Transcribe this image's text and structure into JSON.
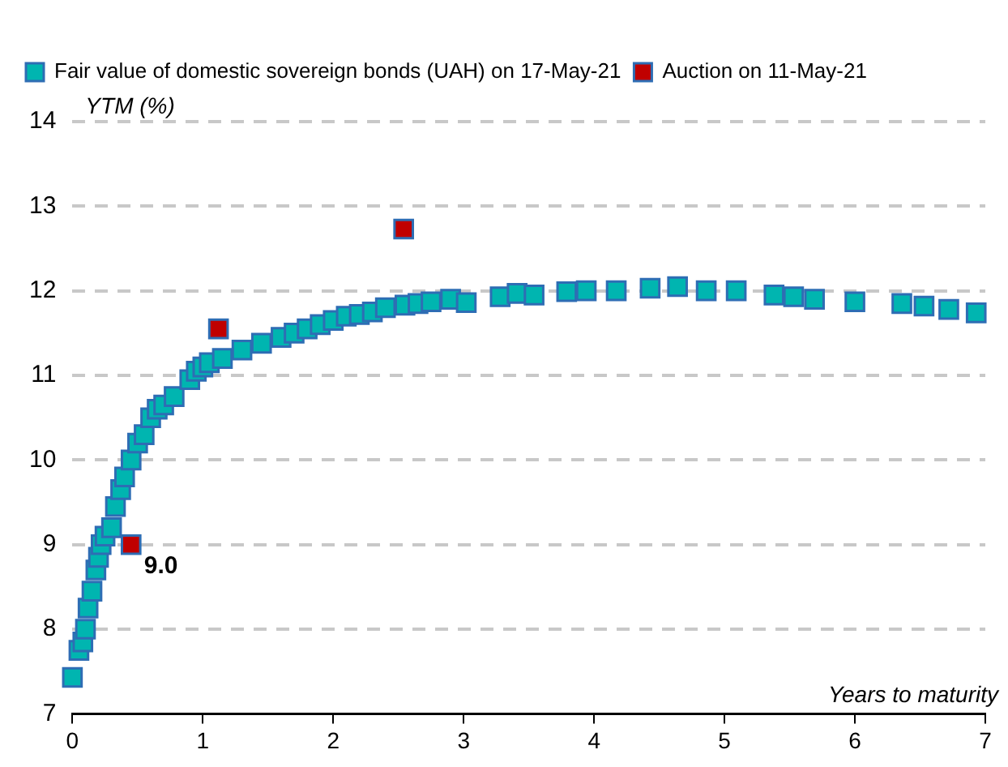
{
  "chart_data": {
    "type": "scatter",
    "xlabel": "Years to maturity",
    "ylabel": "YTM (%)",
    "xlim": [
      0,
      7
    ],
    "xticks": [
      0,
      1,
      2,
      3,
      4,
      5,
      6,
      7
    ],
    "ylim": [
      7,
      14
    ],
    "yticks": [
      7,
      8,
      9,
      10,
      11,
      12,
      13,
      14
    ],
    "grid": "y",
    "legend": "top",
    "marker": "square",
    "series": [
      {
        "name": "Fair value of domestic sovereign bonds (UAH) on 17-May-21",
        "color": "#00b5b0",
        "x": [
          0.0,
          0.05,
          0.08,
          0.1,
          0.12,
          0.15,
          0.18,
          0.2,
          0.22,
          0.25,
          0.3,
          0.33,
          0.37,
          0.4,
          0.45,
          0.5,
          0.55,
          0.6,
          0.65,
          0.7,
          0.78,
          0.9,
          0.95,
          1.0,
          1.05,
          1.15,
          1.3,
          1.45,
          1.6,
          1.7,
          1.8,
          1.9,
          2.0,
          2.1,
          2.2,
          2.3,
          2.4,
          2.55,
          2.65,
          2.75,
          2.9,
          3.02,
          3.28,
          3.41,
          3.54,
          3.79,
          3.94,
          4.17,
          4.43,
          4.64,
          4.86,
          5.09,
          5.38,
          5.53,
          5.69,
          6.0,
          6.36,
          6.53,
          6.72,
          6.93
        ],
        "values": [
          7.43,
          7.75,
          7.85,
          8.0,
          8.25,
          8.45,
          8.7,
          8.85,
          9.0,
          9.1,
          9.2,
          9.45,
          9.65,
          9.8,
          10.0,
          10.2,
          10.3,
          10.5,
          10.6,
          10.65,
          10.75,
          10.95,
          11.05,
          11.1,
          11.15,
          11.2,
          11.3,
          11.38,
          11.45,
          11.5,
          11.55,
          11.6,
          11.65,
          11.7,
          11.72,
          11.75,
          11.8,
          11.83,
          11.85,
          11.87,
          11.9,
          11.86,
          11.93,
          11.97,
          11.95,
          11.99,
          12.0,
          12.0,
          12.03,
          12.05,
          12.0,
          12.0,
          11.95,
          11.93,
          11.9,
          11.87,
          11.85,
          11.82,
          11.78,
          11.74
        ]
      },
      {
        "name": "Auction on 11-May-21",
        "color": "#c00000",
        "x": [
          0.45,
          1.12,
          2.54
        ],
        "values": [
          9.0,
          11.55,
          12.73
        ],
        "value_labels": [
          "9.0",
          null,
          null
        ]
      }
    ]
  }
}
